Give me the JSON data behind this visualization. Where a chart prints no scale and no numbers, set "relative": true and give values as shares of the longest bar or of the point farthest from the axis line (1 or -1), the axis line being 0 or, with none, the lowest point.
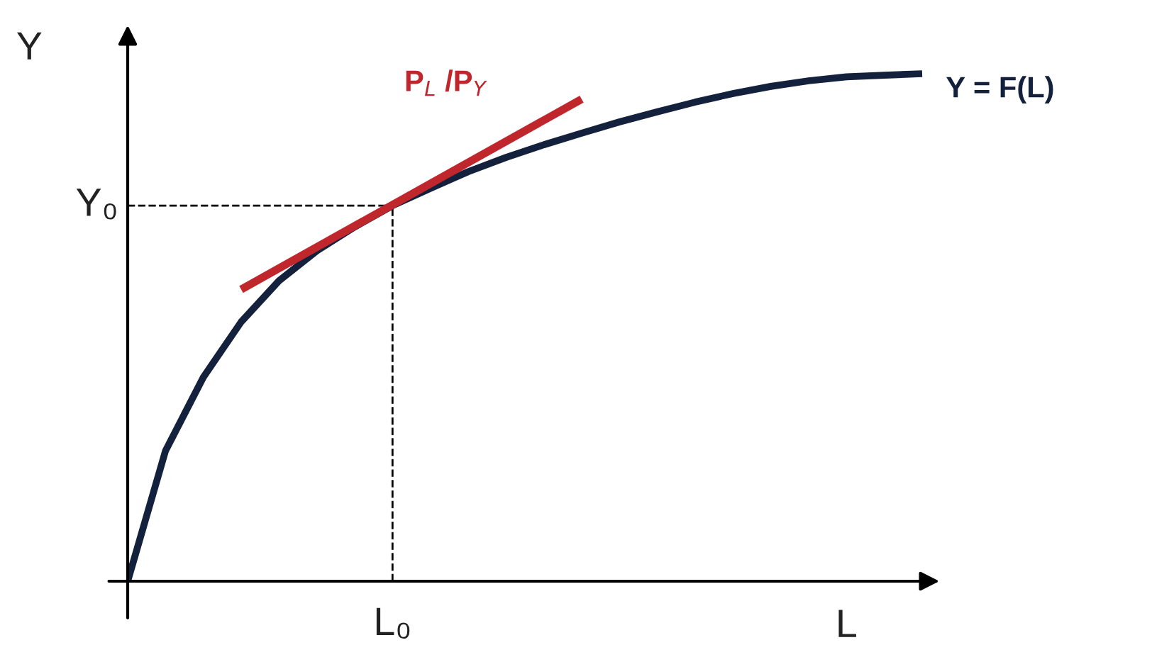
{
  "chart_data": {
    "type": "line",
    "relative": true,
    "xlabel": "L",
    "ylabel": "Y",
    "categories": [
      null,
      null,
      null,
      null,
      null,
      null,
      null,
      null,
      null,
      null,
      null,
      null,
      null,
      null,
      null,
      null,
      null,
      null,
      null,
      null,
      null,
      null
    ],
    "series": [
      {
        "name": "Y = F(L)",
        "color": "#14213d",
        "values": [
          0,
          0.257,
          0.402,
          0.511,
          0.592,
          0.651,
          0.698,
          0.74,
          0.774,
          0.807,
          0.835,
          0.86,
          0.883,
          0.905,
          0.925,
          0.944,
          0.961,
          0.975,
          0.986,
          0.994,
          0.997,
          1
        ]
      },
      {
        "name": "P$_{L}$ /P$_{Y}$",
        "color": "#c0272d",
        "values": [
          null,
          null,
          null,
          0.575,
          null,
          null,
          null,
          null,
          null,
          null,
          null,
          null,
          0.95,
          null,
          null,
          null,
          null,
          null,
          null,
          null,
          null,
          null
        ]
      }
    ],
    "ref_lines": [
      {
        "axis": "y",
        "value": 0.74,
        "label": "Y₀",
        "line_style": "dashed"
      },
      {
        "axis": "x",
        "value": "L₀",
        "line_style": "dashed"
      }
    ],
    "legend": false,
    "marker": "none",
    "line_style": "solid"
  }
}
